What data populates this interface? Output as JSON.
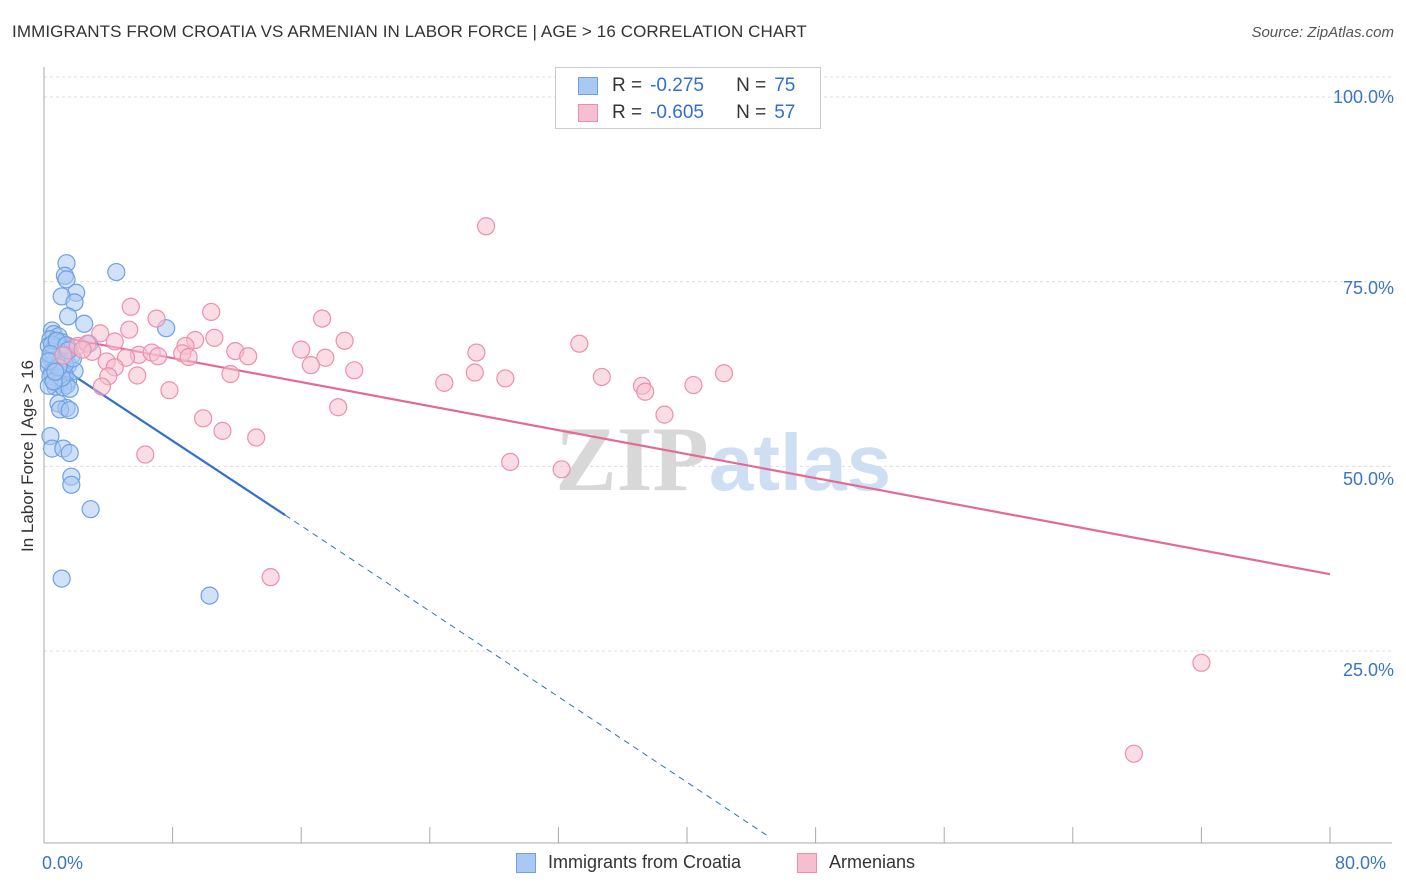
{
  "chart_data": {
    "type": "scatter",
    "title": "IMMIGRANTS FROM CROATIA VS ARMENIAN IN LABOR FORCE | AGE > 16 CORRELATION CHART",
    "source": "Source: ZipAtlas.com",
    "xlabel": "",
    "ylabel": "In Labor Force | Age > 16",
    "xlim": [
      0,
      80
    ],
    "ylim": [
      0,
      105
    ],
    "x_tick_labels": [
      "0.0%",
      "80.0%"
    ],
    "y_ticks": [
      25,
      50,
      75,
      100
    ],
    "y_tick_labels": [
      "25.0%",
      "50.0%",
      "75.0%",
      "100.0%"
    ],
    "watermark": {
      "a": "ZIP",
      "b": "atlas"
    },
    "legend": {
      "r_label": "R =",
      "n_label": "N =",
      "entries": [
        {
          "name": "Immigrants from Croatia",
          "r": "-0.275",
          "n": "75",
          "fill": "#a9c8f2",
          "stroke": "#6fa0e0"
        },
        {
          "name": "Armenians",
          "r": "-0.605",
          "n": "57",
          "fill": "#f6bfd0",
          "stroke": "#ec8fae"
        }
      ]
    },
    "series": [
      {
        "name": "Immigrants from Croatia",
        "color": "#6fa0e0",
        "fill": "#a9c8f2",
        "points": [
          [
            1.4,
            77.5
          ],
          [
            1.3,
            75.8
          ],
          [
            1.4,
            75.3
          ],
          [
            4.5,
            76.3
          ],
          [
            2.0,
            73.5
          ],
          [
            1.1,
            73.0
          ],
          [
            1.9,
            72.2
          ],
          [
            1.5,
            70.3
          ],
          [
            2.5,
            69.3
          ],
          [
            7.6,
            68.7
          ],
          [
            0.5,
            68.4
          ],
          [
            0.6,
            67.9
          ],
          [
            0.9,
            67.6
          ],
          [
            0.4,
            67.2
          ],
          [
            0.7,
            66.9
          ],
          [
            1.1,
            66.8
          ],
          [
            2.8,
            66.6
          ],
          [
            0.3,
            66.3
          ],
          [
            0.8,
            66.1
          ],
          [
            1.2,
            66.0
          ],
          [
            1.6,
            65.8
          ],
          [
            0.5,
            65.6
          ],
          [
            0.9,
            65.3
          ],
          [
            1.3,
            65.1
          ],
          [
            1.7,
            64.9
          ],
          [
            0.4,
            64.7
          ],
          [
            0.8,
            64.5
          ],
          [
            1.2,
            64.3
          ],
          [
            0.6,
            64.1
          ],
          [
            1.0,
            63.9
          ],
          [
            1.5,
            63.7
          ],
          [
            0.3,
            63.5
          ],
          [
            0.7,
            63.3
          ],
          [
            1.1,
            63.1
          ],
          [
            1.9,
            62.9
          ],
          [
            0.5,
            62.7
          ],
          [
            0.9,
            62.5
          ],
          [
            1.3,
            62.3
          ],
          [
            0.4,
            62.1
          ],
          [
            0.8,
            61.9
          ],
          [
            1.5,
            61.6
          ],
          [
            0.6,
            61.4
          ],
          [
            1.0,
            61.2
          ],
          [
            1.4,
            61.0
          ],
          [
            0.7,
            60.8
          ],
          [
            1.2,
            60.7
          ],
          [
            1.6,
            60.5
          ],
          [
            0.3,
            60.9
          ],
          [
            0.9,
            58.5
          ],
          [
            1.4,
            57.9
          ],
          [
            1.0,
            57.7
          ],
          [
            1.6,
            57.6
          ],
          [
            0.4,
            54.1
          ],
          [
            0.5,
            52.4
          ],
          [
            1.2,
            52.4
          ],
          [
            1.6,
            51.8
          ],
          [
            1.7,
            48.6
          ],
          [
            1.7,
            47.5
          ],
          [
            2.9,
            44.2
          ],
          [
            1.1,
            34.8
          ],
          [
            10.3,
            32.5
          ],
          [
            0.6,
            65.0
          ],
          [
            1.0,
            64.0
          ],
          [
            0.5,
            66.5
          ],
          [
            1.3,
            63.8
          ],
          [
            0.8,
            67.0
          ],
          [
            1.1,
            62.0
          ],
          [
            0.4,
            65.2
          ],
          [
            1.8,
            64.6
          ],
          [
            0.6,
            61.5
          ],
          [
            1.4,
            66.4
          ],
          [
            0.9,
            63.4
          ],
          [
            1.5,
            65.7
          ],
          [
            0.3,
            64.2
          ],
          [
            0.7,
            62.8
          ]
        ],
        "trend": {
          "solid": [
            [
              0.3,
              64.5
            ],
            [
              15.0,
              43.4
            ]
          ],
          "dashed": [
            [
              15.0,
              43.4
            ],
            [
              45.0,
              0.0
            ]
          ]
        }
      },
      {
        "name": "Armenians",
        "color": "#ec8fae",
        "fill": "#f6bfd0",
        "points": [
          [
            27.5,
            82.5
          ],
          [
            5.4,
            71.6
          ],
          [
            10.4,
            70.9
          ],
          [
            17.3,
            70.0
          ],
          [
            7.0,
            70.0
          ],
          [
            5.3,
            68.5
          ],
          [
            3.5,
            68.0
          ],
          [
            10.6,
            67.4
          ],
          [
            9.4,
            67.1
          ],
          [
            18.7,
            67.0
          ],
          [
            2.1,
            66.3
          ],
          [
            2.7,
            66.6
          ],
          [
            8.8,
            66.3
          ],
          [
            4.4,
            66.9
          ],
          [
            5.9,
            65.1
          ],
          [
            3.0,
            65.5
          ],
          [
            6.7,
            65.4
          ],
          [
            11.9,
            65.6
          ],
          [
            16.0,
            65.8
          ],
          [
            8.6,
            65.3
          ],
          [
            26.9,
            65.4
          ],
          [
            33.3,
            66.6
          ],
          [
            12.7,
            64.9
          ],
          [
            5.1,
            64.7
          ],
          [
            17.5,
            64.7
          ],
          [
            7.1,
            64.9
          ],
          [
            3.9,
            64.2
          ],
          [
            16.6,
            63.7
          ],
          [
            4.4,
            63.4
          ],
          [
            19.3,
            63.0
          ],
          [
            11.6,
            62.5
          ],
          [
            26.8,
            62.7
          ],
          [
            4.0,
            62.2
          ],
          [
            5.8,
            62.3
          ],
          [
            28.7,
            61.9
          ],
          [
            34.7,
            62.1
          ],
          [
            42.3,
            62.6
          ],
          [
            24.9,
            61.3
          ],
          [
            37.2,
            60.9
          ],
          [
            40.4,
            61.0
          ],
          [
            3.6,
            60.8
          ],
          [
            7.8,
            60.3
          ],
          [
            37.4,
            60.1
          ],
          [
            18.3,
            58.0
          ],
          [
            38.6,
            57.0
          ],
          [
            9.9,
            56.5
          ],
          [
            11.1,
            54.8
          ],
          [
            13.2,
            53.9
          ],
          [
            6.3,
            51.6
          ],
          [
            29.0,
            50.6
          ],
          [
            32.2,
            49.6
          ],
          [
            14.1,
            35.0
          ],
          [
            72.0,
            23.4
          ],
          [
            67.8,
            11.1
          ],
          [
            1.2,
            65.0
          ],
          [
            2.4,
            65.8
          ],
          [
            9.0,
            64.8
          ]
        ],
        "trend": {
          "solid": [
            [
              1.0,
              67.5
            ],
            [
              80.0,
              35.4
            ]
          ]
        }
      }
    ]
  }
}
